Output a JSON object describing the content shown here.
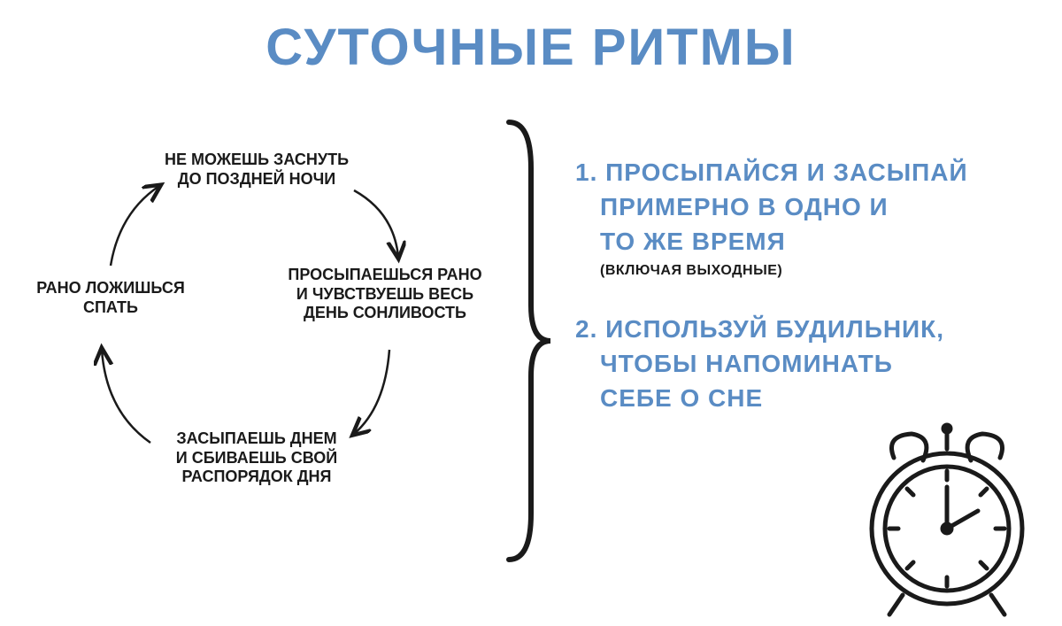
{
  "colors": {
    "title": "#5a8cc4",
    "tip": "#5a8cc4",
    "text": "#1a1a1a",
    "stroke": "#1a1a1a",
    "bg": "#ffffff"
  },
  "title": "СУТОЧНЫЕ РИТМЫ",
  "cycle": {
    "top": "НЕ МОЖЕШЬ ЗАСНУТЬ\nДО ПОЗДНЕЙ НОЧИ",
    "right": "ПРОСЫПАЕШЬСЯ РАНО\nИ ЧУВСТВУЕШЬ ВЕСЬ\nДЕНЬ СОНЛИВОСТЬ",
    "bottom": "ЗАСЫПАЕШЬ ДНЕМ\nИ СБИВАЕШЬ СВОЙ\nРАСПОРЯДОК ДНЯ",
    "left": "РАНО ЛОЖИШЬСЯ\nСПАТЬ"
  },
  "tips": {
    "tip1_l1": "1. ПРОСЫПАЙСЯ И ЗАСЫПАЙ",
    "tip1_l2": "ПРИМЕРНО В ОДНО И",
    "tip1_l3": "ТО ЖЕ ВРЕМЯ",
    "tip1_sub": "(ВКЛЮЧАЯ ВЫХОДНЫЕ)",
    "tip2_l1": "2. ИСПОЛЬЗУЙ БУДИЛЬНИК,",
    "tip2_l2": "ЧТОБЫ НАПОМИНАТЬ",
    "tip2_l3": "СЕБЕ О СНЕ"
  },
  "diagram": {
    "type": "infographic",
    "cycle_arrow_stroke_width": 2.5,
    "brace_stroke_width": 6,
    "clock_stroke_width": 5,
    "title_fontsize": 58,
    "cycle_fontsize": 18,
    "tip_fontsize": 28,
    "tip_sub_fontsize": 16
  }
}
